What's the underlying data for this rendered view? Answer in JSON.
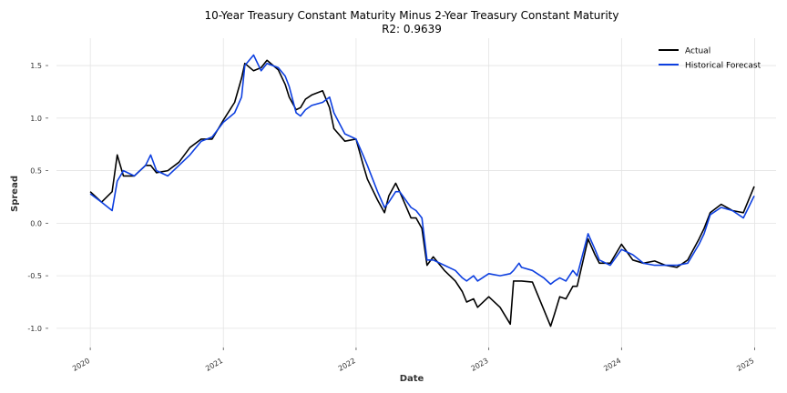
{
  "chart_data": {
    "type": "line",
    "title": "10-Year Treasury Constant Maturity Minus 2-Year Treasury Constant Maturity",
    "subtitle": "R2: 0.9639",
    "xlabel": "Date",
    "ylabel": "Spread",
    "x_ticks": [
      "2020",
      "2021",
      "2022",
      "2023",
      "2024",
      "2025"
    ],
    "y_ticks": [
      "-1.0",
      "-0.5",
      "0.0",
      "0.5",
      "1.0",
      "1.5"
    ],
    "xlim": [
      "2019-09-30",
      "2025-03-01"
    ],
    "ylim": [
      -1.2,
      1.76
    ],
    "grid": true,
    "legend_position": "top-right",
    "x": [
      "2020-01-01",
      "2020-02-01",
      "2020-03-01",
      "2020-03-15",
      "2020-04-01",
      "2020-05-01",
      "2020-06-01",
      "2020-06-15",
      "2020-07-01",
      "2020-08-01",
      "2020-09-01",
      "2020-10-01",
      "2020-11-01",
      "2020-12-01",
      "2021-01-01",
      "2021-02-01",
      "2021-02-20",
      "2021-03-01",
      "2021-03-25",
      "2021-04-15",
      "2021-05-01",
      "2021-06-01",
      "2021-06-20",
      "2021-07-01",
      "2021-07-20",
      "2021-08-01",
      "2021-08-15",
      "2021-09-01",
      "2021-10-01",
      "2021-10-20",
      "2021-11-01",
      "2021-12-01",
      "2022-01-01",
      "2022-01-20",
      "2022-02-01",
      "2022-03-01",
      "2022-03-20",
      "2022-04-01",
      "2022-04-20",
      "2022-05-01",
      "2022-06-01",
      "2022-06-15",
      "2022-07-01",
      "2022-07-15",
      "2022-08-01",
      "2022-09-01",
      "2022-10-01",
      "2022-10-20",
      "2022-11-01",
      "2022-11-20",
      "2022-12-01",
      "2023-01-01",
      "2023-02-01",
      "2023-03-01",
      "2023-03-10",
      "2023-03-25",
      "2023-04-01",
      "2023-05-01",
      "2023-06-01",
      "2023-06-20",
      "2023-07-01",
      "2023-07-15",
      "2023-08-01",
      "2023-08-20",
      "2023-09-01",
      "2023-10-01",
      "2023-10-20",
      "2023-11-01",
      "2023-12-01",
      "2024-01-01",
      "2024-02-01",
      "2024-03-01",
      "2024-04-01",
      "2024-05-01",
      "2024-06-01",
      "2024-07-01",
      "2024-08-01",
      "2024-08-15",
      "2024-09-01",
      "2024-10-01",
      "2024-11-01",
      "2024-12-01",
      "2024-12-31"
    ],
    "series": [
      {
        "name": "Actual",
        "color": "#000000",
        "values": [
          0.3,
          0.2,
          0.3,
          0.65,
          0.45,
          0.45,
          0.55,
          0.55,
          0.48,
          0.5,
          0.58,
          0.72,
          0.8,
          0.8,
          0.98,
          1.15,
          1.38,
          1.52,
          1.45,
          1.48,
          1.55,
          1.46,
          1.32,
          1.2,
          1.08,
          1.1,
          1.18,
          1.22,
          1.26,
          1.1,
          0.9,
          0.78,
          0.8,
          0.56,
          0.42,
          0.22,
          0.1,
          0.26,
          0.38,
          0.3,
          0.05,
          0.05,
          -0.05,
          -0.4,
          -0.32,
          -0.45,
          -0.55,
          -0.65,
          -0.75,
          -0.72,
          -0.8,
          -0.7,
          -0.8,
          -0.96,
          -0.55,
          -0.55,
          -0.55,
          -0.56,
          -0.82,
          -0.98,
          -0.86,
          -0.7,
          -0.72,
          -0.6,
          -0.6,
          -0.15,
          -0.3,
          -0.38,
          -0.38,
          -0.2,
          -0.35,
          -0.38,
          -0.36,
          -0.4,
          -0.42,
          -0.35,
          -0.15,
          -0.05,
          0.1,
          0.18,
          0.12,
          0.1,
          0.35
        ]
      },
      {
        "name": "Historical Forecast",
        "color": "#0d3fe0",
        "values": [
          0.28,
          0.2,
          0.12,
          0.4,
          0.5,
          0.45,
          0.55,
          0.65,
          0.5,
          0.45,
          0.55,
          0.65,
          0.78,
          0.82,
          0.96,
          1.05,
          1.2,
          1.5,
          1.6,
          1.45,
          1.52,
          1.48,
          1.4,
          1.3,
          1.05,
          1.02,
          1.08,
          1.12,
          1.15,
          1.2,
          1.05,
          0.85,
          0.8,
          0.65,
          0.55,
          0.3,
          0.15,
          0.2,
          0.3,
          0.3,
          0.15,
          0.12,
          0.05,
          -0.35,
          -0.35,
          -0.4,
          -0.45,
          -0.52,
          -0.55,
          -0.5,
          -0.55,
          -0.48,
          -0.5,
          -0.48,
          -0.45,
          -0.38,
          -0.42,
          -0.45,
          -0.52,
          -0.58,
          -0.55,
          -0.52,
          -0.55,
          -0.45,
          -0.5,
          -0.1,
          -0.25,
          -0.35,
          -0.4,
          -0.25,
          -0.3,
          -0.38,
          -0.4,
          -0.4,
          -0.4,
          -0.38,
          -0.2,
          -0.1,
          0.08,
          0.15,
          0.12,
          0.05,
          0.26
        ]
      }
    ]
  }
}
